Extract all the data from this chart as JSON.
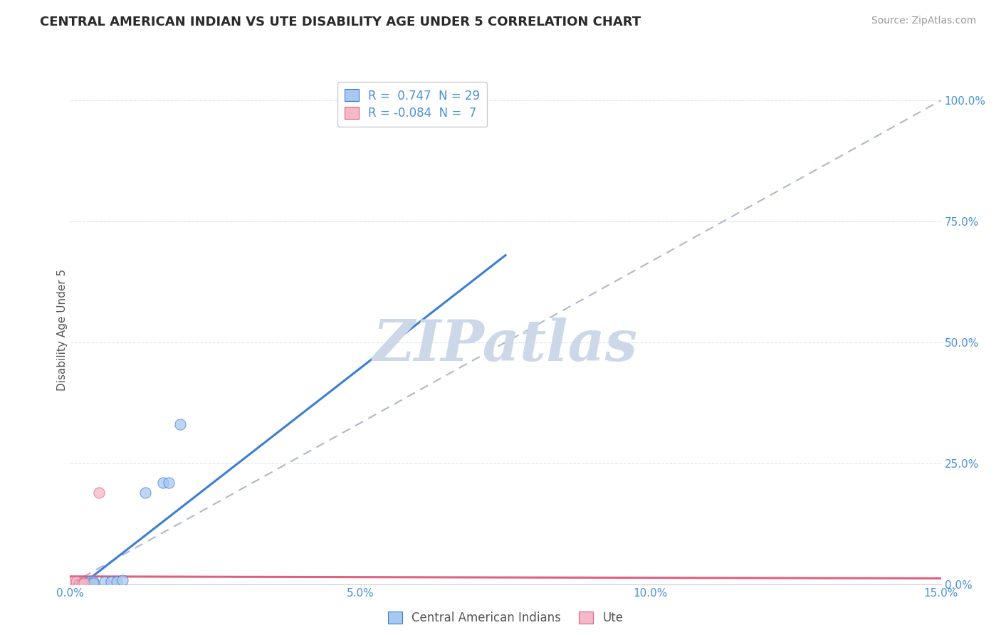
{
  "title": "CENTRAL AMERICAN INDIAN VS UTE DISABILITY AGE UNDER 5 CORRELATION CHART",
  "source": "Source: ZipAtlas.com",
  "ylabel_label": "Disability Age Under 5",
  "xlim": [
    0.0,
    0.15
  ],
  "ylim": [
    0.0,
    1.05
  ],
  "xticks": [
    0.0,
    0.025,
    0.05,
    0.075,
    0.1,
    0.125,
    0.15
  ],
  "xtick_labels": [
    "0.0%",
    "",
    "5.0%",
    "",
    "10.0%",
    "",
    "15.0%"
  ],
  "ytick_labels_right": [
    "0.0%",
    "25.0%",
    "50.0%",
    "75.0%",
    "100.0%"
  ],
  "ytick_positions_right": [
    0.0,
    0.25,
    0.5,
    0.75,
    1.0
  ],
  "R_blue": 0.747,
  "N_blue": 29,
  "R_pink": -0.084,
  "N_pink": 7,
  "blue_color": "#a8c8f0",
  "pink_color": "#f4b8c8",
  "blue_line_color": "#3a7fd5",
  "pink_line_color": "#e06080",
  "diagonal_color": "#b0b8c8",
  "watermark_color": "#ccd8e8",
  "background_color": "#ffffff",
  "grid_color": "#dde4ee",
  "blue_scatter_x": [
    0.0002,
    0.0004,
    0.0006,
    0.0008,
    0.001,
    0.0012,
    0.0014,
    0.0016,
    0.0018,
    0.002,
    0.002,
    0.0022,
    0.0024,
    0.0026,
    0.0028,
    0.003,
    0.003,
    0.0032,
    0.0034,
    0.004,
    0.004,
    0.006,
    0.007,
    0.008,
    0.009,
    0.013,
    0.016,
    0.017,
    0.019
  ],
  "blue_scatter_y": [
    0.0,
    0.0,
    0.0,
    0.0,
    0.0,
    0.0,
    0.0,
    0.0,
    0.0,
    0.0,
    0.003,
    0.0,
    0.0,
    0.003,
    0.003,
    0.003,
    0.0,
    0.003,
    0.006,
    0.006,
    0.003,
    0.005,
    0.005,
    0.005,
    0.008,
    0.19,
    0.21,
    0.21,
    0.33
  ],
  "pink_scatter_x": [
    0.0002,
    0.0006,
    0.001,
    0.0016,
    0.002,
    0.0024,
    0.005
  ],
  "pink_scatter_y": [
    0.0,
    0.005,
    0.005,
    0.0,
    0.0,
    0.003,
    0.19
  ],
  "blue_line_x0": 0.0,
  "blue_line_x1": 0.075,
  "blue_line_y0": -0.02,
  "blue_line_y1": 0.68,
  "pink_line_x0": 0.0,
  "pink_line_x1": 0.15,
  "pink_line_y0": 0.016,
  "pink_line_y1": 0.012
}
